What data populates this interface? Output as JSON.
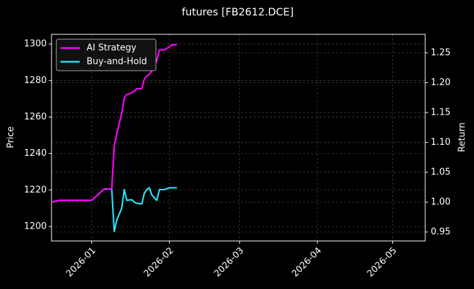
{
  "chart_data": {
    "type": "line",
    "title": "futures [FB2612.DCE]",
    "ylabel": "Price",
    "y2label": "Return",
    "x": [
      20438,
      20441,
      20444,
      20446,
      20449,
      20452,
      20454,
      20459,
      20462,
      20463,
      20464,
      20466,
      20467,
      20468,
      20470,
      20471,
      20472,
      20474,
      20475,
      20476,
      20477,
      20478,
      20480,
      20481,
      20483,
      20485,
      20486,
      20488
    ],
    "series": [
      {
        "name": "AI Strategy",
        "color": "#ff00ff",
        "axis": "y2",
        "values": [
          1.0,
          1.003,
          1.003,
          1.003,
          1.003,
          1.003,
          1.003,
          1.022,
          1.022,
          1.094,
          1.114,
          1.149,
          1.174,
          1.18,
          1.183,
          1.186,
          1.19,
          1.19,
          1.206,
          1.211,
          1.214,
          1.22,
          1.237,
          1.255,
          1.255,
          1.26,
          1.263,
          1.264
        ]
      },
      {
        "name": "Buy-and-Hold",
        "color": "#22e5f5",
        "axis": "y2",
        "values": [
          1.0,
          1.003,
          1.003,
          1.003,
          1.003,
          1.003,
          1.003,
          1.022,
          1.022,
          0.951,
          0.97,
          0.99,
          1.021,
          1.003,
          1.004,
          1.0,
          0.998,
          0.997,
          1.015,
          1.021,
          1.024,
          1.012,
          1.003,
          1.021,
          1.021,
          1.024,
          1.024,
          1.024
        ]
      }
    ],
    "xlim": [
      20438,
      20587
    ],
    "xticks": [
      {
        "value": 20454,
        "label": "2026-01"
      },
      {
        "value": 20485,
        "label": "2026-02"
      },
      {
        "value": 20513,
        "label": "2026-03"
      },
      {
        "value": 20544,
        "label": "2026-04"
      },
      {
        "value": 20574,
        "label": "2026-05"
      }
    ],
    "ylim": [
      1192.1,
      1305.3
    ],
    "yticks": [
      1200,
      1220,
      1240,
      1260,
      1280,
      1300
    ],
    "y2lim": [
      0.935,
      1.281
    ],
    "y2ticks": [
      0.95,
      {
        "value": 1,
        "label": "1.00"
      },
      1.05,
      {
        "value": 1.1,
        "label": "1.10"
      },
      1.15,
      {
        "value": 1.2,
        "label": "1.20"
      },
      1.25
    ],
    "grid": true,
    "legend": "upper left"
  }
}
